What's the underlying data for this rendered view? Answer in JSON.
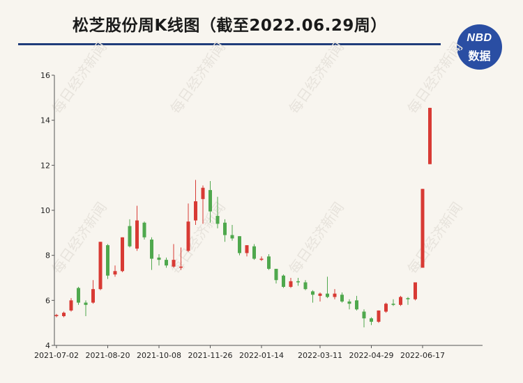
{
  "header": {
    "title": "松芝股份周K线图（截至2022.06.29周）"
  },
  "logo": {
    "top": "NBD",
    "bottom": "数据"
  },
  "watermark": "每日经济新闻",
  "colors": {
    "up": "#d83a34",
    "down": "#4fa84d",
    "axis": "#555555",
    "title_rule": "#1f3c7a",
    "logo": "#2a4ea3"
  },
  "chart_data": {
    "type": "candlestick",
    "title": "松芝股份周K线图（截至2022.06.29周）",
    "ylim": [
      4,
      16
    ],
    "yticks": [
      4,
      6,
      8,
      10,
      12,
      14,
      16
    ],
    "grid": false,
    "xtick_labels": [
      {
        "index": 0,
        "label": "2021-07-02"
      },
      {
        "index": 7,
        "label": "2021-08-20"
      },
      {
        "index": 14,
        "label": "2021-10-08"
      },
      {
        "index": 21,
        "label": "2021-11-26"
      },
      {
        "index": 28,
        "label": "2022-01-14"
      },
      {
        "index": 36,
        "label": "2022-03-11"
      },
      {
        "index": 43,
        "label": "2022-04-29"
      },
      {
        "index": 50,
        "label": "2022-06-17"
      }
    ],
    "candles": [
      {
        "o": 5.3,
        "c": 5.35,
        "h": 5.4,
        "l": 5.25
      },
      {
        "o": 5.3,
        "c": 5.45,
        "h": 5.5,
        "l": 5.25
      },
      {
        "o": 5.55,
        "c": 6.0,
        "h": 6.1,
        "l": 5.5
      },
      {
        "o": 6.55,
        "c": 5.9,
        "h": 6.6,
        "l": 5.8
      },
      {
        "o": 5.9,
        "c": 5.8,
        "h": 6.0,
        "l": 5.3
      },
      {
        "o": 5.9,
        "c": 6.5,
        "h": 6.9,
        "l": 5.85
      },
      {
        "o": 6.5,
        "c": 8.6,
        "h": 8.6,
        "l": 6.45
      },
      {
        "o": 8.45,
        "c": 7.1,
        "h": 8.5,
        "l": 6.95
      },
      {
        "o": 7.15,
        "c": 7.3,
        "h": 7.55,
        "l": 7.05
      },
      {
        "o": 7.3,
        "c": 8.8,
        "h": 8.8,
        "l": 7.25
      },
      {
        "o": 9.3,
        "c": 8.4,
        "h": 9.6,
        "l": 8.35
      },
      {
        "o": 8.3,
        "c": 9.55,
        "h": 10.2,
        "l": 8.2
      },
      {
        "o": 9.45,
        "c": 8.8,
        "h": 9.5,
        "l": 8.7
      },
      {
        "o": 8.7,
        "c": 7.85,
        "h": 8.8,
        "l": 7.35
      },
      {
        "o": 7.9,
        "c": 7.8,
        "h": 8.05,
        "l": 7.55
      },
      {
        "o": 7.8,
        "c": 7.55,
        "h": 7.9,
        "l": 7.45
      },
      {
        "o": 7.5,
        "c": 7.8,
        "h": 8.5,
        "l": 7.45
      },
      {
        "o": 7.45,
        "c": 7.5,
        "h": 8.35,
        "l": 7.35
      },
      {
        "o": 8.2,
        "c": 9.5,
        "h": 10.3,
        "l": 8.15
      },
      {
        "o": 9.55,
        "c": 10.4,
        "h": 11.35,
        "l": 9.35
      },
      {
        "o": 10.5,
        "c": 11.0,
        "h": 11.1,
        "l": 9.4
      },
      {
        "o": 10.9,
        "c": 9.95,
        "h": 11.3,
        "l": 9.45
      },
      {
        "o": 9.75,
        "c": 9.4,
        "h": 10.6,
        "l": 9.2
      },
      {
        "o": 9.45,
        "c": 8.9,
        "h": 9.6,
        "l": 8.6
      },
      {
        "o": 8.9,
        "c": 8.75,
        "h": 9.35,
        "l": 8.65
      },
      {
        "o": 8.85,
        "c": 8.1,
        "h": 8.85,
        "l": 8.0
      },
      {
        "o": 8.1,
        "c": 8.45,
        "h": 8.45,
        "l": 7.95
      },
      {
        "o": 8.4,
        "c": 7.85,
        "h": 8.5,
        "l": 7.8
      },
      {
        "o": 7.8,
        "c": 7.85,
        "h": 7.95,
        "l": 7.75
      },
      {
        "o": 7.95,
        "c": 7.4,
        "h": 8.05,
        "l": 7.35
      },
      {
        "o": 7.4,
        "c": 6.9,
        "h": 7.4,
        "l": 6.75
      },
      {
        "o": 7.1,
        "c": 6.6,
        "h": 7.15,
        "l": 6.55
      },
      {
        "o": 6.6,
        "c": 6.85,
        "h": 7.0,
        "l": 6.55
      },
      {
        "o": 6.85,
        "c": 6.8,
        "h": 7.0,
        "l": 6.65
      },
      {
        "o": 6.8,
        "c": 6.5,
        "h": 6.9,
        "l": 6.45
      },
      {
        "o": 6.4,
        "c": 6.25,
        "h": 6.45,
        "l": 5.9
      },
      {
        "o": 6.2,
        "c": 6.3,
        "h": 6.35,
        "l": 5.95
      },
      {
        "o": 6.3,
        "c": 6.15,
        "h": 7.05,
        "l": 6.1
      },
      {
        "o": 6.15,
        "c": 6.3,
        "h": 6.5,
        "l": 6.05
      },
      {
        "o": 6.25,
        "c": 5.95,
        "h": 6.35,
        "l": 5.9
      },
      {
        "o": 5.95,
        "c": 5.85,
        "h": 6.05,
        "l": 5.6
      },
      {
        "o": 6.0,
        "c": 5.6,
        "h": 6.2,
        "l": 5.55
      },
      {
        "o": 5.5,
        "c": 5.2,
        "h": 5.6,
        "l": 4.8
      },
      {
        "o": 5.2,
        "c": 5.05,
        "h": 5.25,
        "l": 4.9
      },
      {
        "o": 5.05,
        "c": 5.55,
        "h": 5.55,
        "l": 5.0
      },
      {
        "o": 5.5,
        "c": 5.85,
        "h": 5.9,
        "l": 5.45
      },
      {
        "o": 5.85,
        "c": 5.8,
        "h": 6.05,
        "l": 5.75
      },
      {
        "o": 5.8,
        "c": 6.15,
        "h": 6.2,
        "l": 5.75
      },
      {
        "o": 6.1,
        "c": 6.05,
        "h": 6.15,
        "l": 5.8
      },
      {
        "o": 6.05,
        "c": 6.8,
        "h": 6.8,
        "l": 6.0
      },
      {
        "o": 7.45,
        "c": 10.95,
        "h": 10.95,
        "l": 7.45
      },
      {
        "o": 12.05,
        "c": 14.55,
        "h": 14.55,
        "l": 12.05
      }
    ]
  }
}
